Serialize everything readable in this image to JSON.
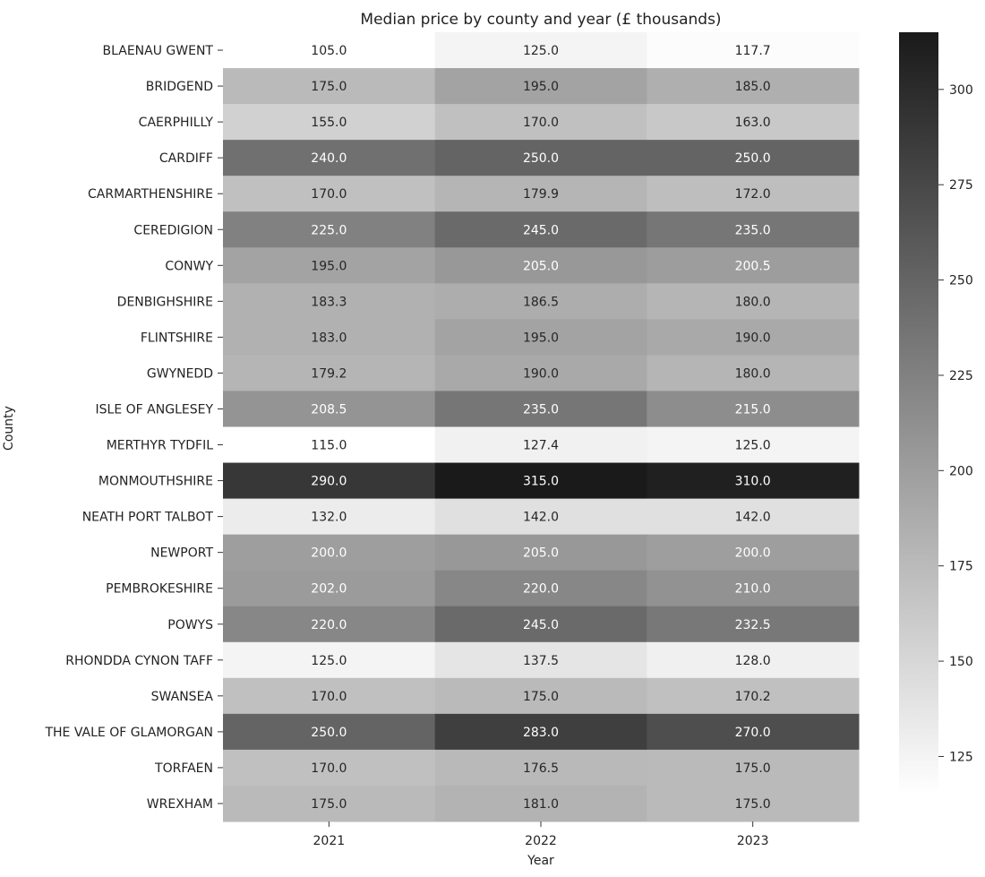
{
  "chart_data": {
    "type": "heatmap",
    "title": "Median price by county and year (£ thousands)",
    "xlabel": "Year",
    "ylabel": "County",
    "x": [
      "2021",
      "2022",
      "2023"
    ],
    "y": [
      "BLAENAU GWENT",
      "BRIDGEND",
      "CAERPHILLY",
      "CARDIFF",
      "CARMARTHENSHIRE",
      "CEREDIGION",
      "CONWY",
      "DENBIGHSHIRE",
      "FLINTSHIRE",
      "GWYNEDD",
      "ISLE OF ANGLESEY",
      "MERTHYR TYDFIL",
      "MONMOUTHSHIRE",
      "NEATH PORT TALBOT",
      "NEWPORT",
      "PEMBROKESHIRE",
      "POWYS",
      "RHONDDA CYNON TAFF",
      "SWANSEA",
      "THE VALE OF GLAMORGAN",
      "TORFAEN",
      "WREXHAM"
    ],
    "values": [
      [
        105.0,
        125.0,
        117.7
      ],
      [
        175.0,
        195.0,
        185.0
      ],
      [
        155.0,
        170.0,
        163.0
      ],
      [
        240.0,
        250.0,
        250.0
      ],
      [
        170.0,
        179.9,
        172.0
      ],
      [
        225.0,
        245.0,
        235.0
      ],
      [
        195.0,
        205.0,
        200.5
      ],
      [
        183.3,
        186.5,
        180.0
      ],
      [
        183.0,
        195.0,
        190.0
      ],
      [
        179.2,
        190.0,
        180.0
      ],
      [
        208.5,
        235.0,
        215.0
      ],
      [
        115.0,
        127.4,
        125.0
      ],
      [
        290.0,
        315.0,
        310.0
      ],
      [
        132.0,
        142.0,
        142.0
      ],
      [
        200.0,
        205.0,
        200.0
      ],
      [
        202.0,
        220.0,
        210.0
      ],
      [
        220.0,
        245.0,
        232.5
      ],
      [
        125.0,
        137.5,
        128.0
      ],
      [
        170.0,
        175.0,
        170.2
      ],
      [
        250.0,
        283.0,
        270.0
      ],
      [
        170.0,
        176.5,
        175.0
      ],
      [
        175.0,
        181.0,
        175.0
      ]
    ],
    "colorbar": {
      "min": 115,
      "max": 315,
      "ticks": [
        125,
        150,
        175,
        200,
        225,
        250,
        275,
        300
      ],
      "low_color": "#ffffff",
      "high_color": "#1a1a1a"
    },
    "value_format": "1 decimal"
  }
}
